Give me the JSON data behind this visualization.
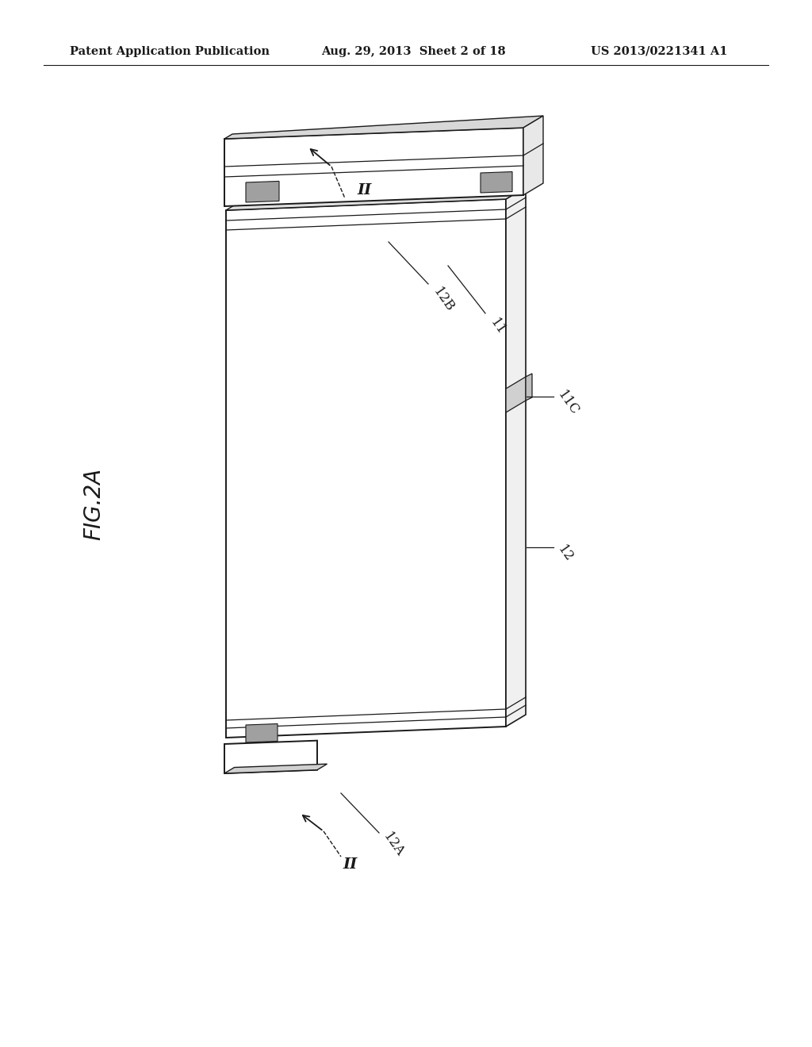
{
  "bg_color": "#ffffff",
  "line_color": "#1a1a1a",
  "header_left": "Patent Application Publication",
  "header_mid": "Aug. 29, 2013  Sheet 2 of 18",
  "header_right": "US 2013/0221341 A1",
  "fig_label": "FIG.2A",
  "header_font_size": 10.5,
  "fig_label_font_size": 20,
  "annotation_font_size": 13,
  "label_font_size": 12
}
